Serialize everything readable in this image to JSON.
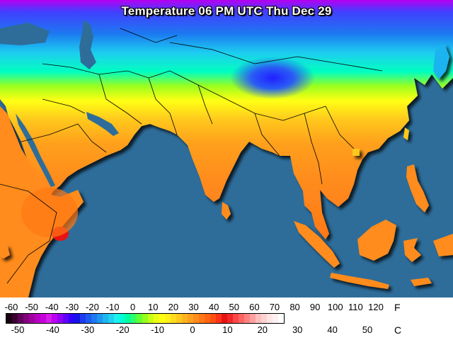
{
  "title": "Temperature 06 PM UTC Thu Dec 29",
  "legend": {
    "fahrenheit_unit": "F",
    "celsius_unit": "C",
    "fahrenheit_ticks": [
      "-60",
      "-50",
      "-40",
      "-30",
      "-20",
      "-10",
      "0",
      "10",
      "20",
      "30",
      "40",
      "50",
      "60",
      "70",
      "80",
      "90",
      "100",
      "110",
      "120"
    ],
    "celsius_ticks": [
      "-50",
      "-40",
      "-30",
      "-20",
      "-10",
      "0",
      "10",
      "20",
      "30",
      "40",
      "50"
    ]
  },
  "colors": {
    "ocean": "#2e6d9a",
    "scale": [
      "#1a0010",
      "#3a0030",
      "#60005a",
      "#82007c",
      "#a000a0",
      "#b400c0",
      "#c800dc",
      "#d21ee6",
      "#c000f0",
      "#9000f4",
      "#6000f8",
      "#3000fc",
      "#1414e6",
      "#1e3cf0",
      "#1e5af0",
      "#1e78f0",
      "#1e96f0",
      "#1eb4f0",
      "#1ed2f0",
      "#1ef0f0",
      "#00ffd2",
      "#00ffa0",
      "#32ff64",
      "#64ff32",
      "#96ff1e",
      "#c8ff14",
      "#ebff14",
      "#ffff14",
      "#fff01e",
      "#ffdc1e",
      "#ffc81e",
      "#ffb41e",
      "#ffa01e",
      "#ff8c1e",
      "#ff7814",
      "#ff6414",
      "#ff5014",
      "#ff3214",
      "#e61414",
      "#f02828",
      "#ff4646",
      "#ff6464",
      "#ff8282",
      "#ffa0a0",
      "#ffbebe",
      "#ffd2d2",
      "#ffe6e6",
      "#fff0f0",
      "#ffffff"
    ]
  }
}
